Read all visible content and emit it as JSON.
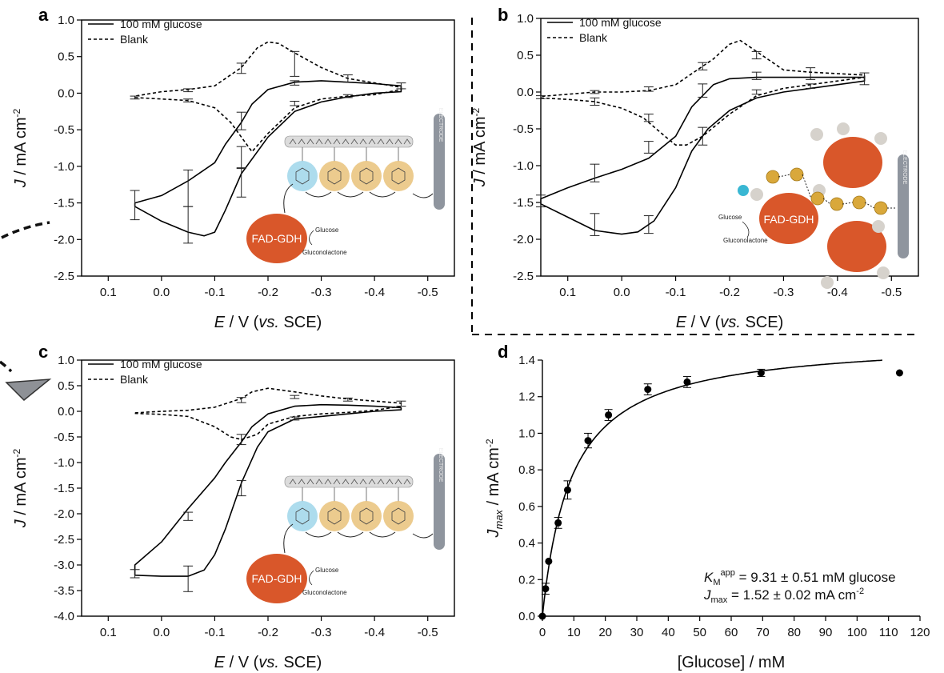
{
  "figure": {
    "panel_letters": [
      "a",
      "b",
      "c",
      "d"
    ]
  },
  "chart_data": [
    {
      "panel": "a",
      "type": "line",
      "xlabel_italic": "E",
      "xlabel_rest": " / V (",
      "xlabel_vs": "vs.",
      "xlabel_end": " SCE)",
      "ylabel_italic": "J",
      "ylabel_rest": " / mA cm",
      "ylabel_sup": "-2",
      "xlim": [
        0.15,
        -0.55
      ],
      "ylim": [
        -2.5,
        1.0
      ],
      "xticks": [
        0.1,
        0.0,
        -0.1,
        -0.2,
        -0.3,
        -0.4,
        -0.5
      ],
      "xtick_labels": [
        "0.1",
        "0.0",
        "-0.1",
        "-0.2",
        "-0.3",
        "-0.4",
        "-0.5"
      ],
      "yticks": [
        1.0,
        0.5,
        0.0,
        -0.5,
        -1.0,
        -1.5,
        -2.0,
        -2.5
      ],
      "ytick_labels": [
        "1.0",
        "0.5",
        "0.0",
        "-0.5",
        "-1.0",
        "-1.5",
        "-2.0",
        "-2.5"
      ],
      "series": [
        {
          "name": "100 mM glucose",
          "style": "solid",
          "x": [
            0.05,
            0.0,
            -0.05,
            -0.08,
            -0.1,
            -0.12,
            -0.15,
            -0.2,
            -0.25,
            -0.3,
            -0.35,
            -0.4,
            -0.45,
            -0.45,
            -0.4,
            -0.35,
            -0.3,
            -0.25,
            -0.2,
            -0.17,
            -0.15,
            -0.12,
            -0.1,
            -0.05,
            0.0,
            0.05
          ],
          "y": [
            -1.55,
            -1.75,
            -1.9,
            -1.95,
            -1.9,
            -1.6,
            -1.1,
            -0.6,
            -0.25,
            -0.12,
            -0.05,
            0.0,
            0.02,
            0.1,
            0.13,
            0.15,
            0.17,
            0.15,
            0.05,
            -0.15,
            -0.4,
            -0.7,
            -0.95,
            -1.2,
            -1.4,
            -1.5
          ]
        },
        {
          "name": "Blank",
          "style": "dashed",
          "x": [
            0.05,
            0.0,
            -0.05,
            -0.1,
            -0.13,
            -0.15,
            -0.17,
            -0.2,
            -0.25,
            -0.3,
            -0.35,
            -0.4,
            -0.45,
            -0.45,
            -0.4,
            -0.35,
            -0.3,
            -0.25,
            -0.22,
            -0.2,
            -0.18,
            -0.15,
            -0.1,
            -0.05,
            0.0,
            0.05
          ],
          "y": [
            -0.06,
            -0.08,
            -0.1,
            -0.2,
            -0.4,
            -0.6,
            -0.8,
            -0.55,
            -0.2,
            -0.08,
            -0.04,
            -0.02,
            0.05,
            0.08,
            0.14,
            0.2,
            0.35,
            0.55,
            0.68,
            0.7,
            0.62,
            0.35,
            0.1,
            0.05,
            0.02,
            -0.04
          ]
        }
      ],
      "error_bars": [
        {
          "x": 0.05,
          "y": -1.53,
          "e": 0.2
        },
        {
          "x": -0.05,
          "y": -1.3,
          "e": 0.25
        },
        {
          "x": -0.05,
          "y": -1.8,
          "e": 0.25
        },
        {
          "x": -0.05,
          "y": 0.04,
          "e": 0.02
        },
        {
          "x": -0.05,
          "y": -0.1,
          "e": 0.02
        },
        {
          "x": 0.05,
          "y": -0.06,
          "e": 0.02
        },
        {
          "x": -0.15,
          "y": 0.34,
          "e": 0.07
        },
        {
          "x": -0.15,
          "y": -0.38,
          "e": 0.12
        },
        {
          "x": -0.15,
          "y": -0.88,
          "e": 0.15
        },
        {
          "x": -0.15,
          "y": -1.22,
          "e": 0.2
        },
        {
          "x": -0.25,
          "y": 0.4,
          "e": 0.17
        },
        {
          "x": -0.25,
          "y": 0.14,
          "e": 0.03
        },
        {
          "x": -0.25,
          "y": -0.14,
          "e": 0.03
        },
        {
          "x": -0.35,
          "y": 0.2,
          "e": 0.05
        },
        {
          "x": -0.35,
          "y": -0.04,
          "e": 0.02
        },
        {
          "x": -0.45,
          "y": 0.1,
          "e": 0.04
        }
      ],
      "legend_position": "top-left",
      "inset": {
        "enzyme_label": "FAD-GDH",
        "substrate_label": "Glucose",
        "product_label": "Gluconolactone",
        "electrode_label": "ELECTRODE"
      }
    },
    {
      "panel": "b",
      "type": "line",
      "xlabel_italic": "E",
      "xlabel_rest": " / V (",
      "xlabel_vs": "vs.",
      "xlabel_end": " SCE)",
      "ylabel_italic": "J",
      "ylabel_rest": " / mA cm",
      "ylabel_sup": "-2",
      "xlim": [
        0.15,
        -0.55
      ],
      "ylim": [
        -2.5,
        1.0
      ],
      "xticks": [
        0.1,
        0.0,
        -0.1,
        -0.2,
        -0.3,
        -0.4,
        -0.5
      ],
      "xtick_labels": [
        "0.1",
        "0.0",
        "-0.1",
        "-0.2",
        "-0.3",
        "-0.4",
        "-0.5"
      ],
      "yticks": [
        1.0,
        0.5,
        0.0,
        -0.5,
        -1.0,
        -1.5,
        -2.0,
        -2.5
      ],
      "ytick_labels": [
        "1.0",
        "0.5",
        "0.0",
        "-0.5",
        "-1.0",
        "-1.5",
        "-2.0",
        "-2.5"
      ],
      "series": [
        {
          "name": "100 mM glucose",
          "style": "solid",
          "x": [
            0.15,
            0.1,
            0.05,
            0.0,
            -0.03,
            -0.06,
            -0.1,
            -0.13,
            -0.16,
            -0.2,
            -0.25,
            -0.3,
            -0.35,
            -0.4,
            -0.45,
            -0.45,
            -0.4,
            -0.35,
            -0.3,
            -0.25,
            -0.2,
            -0.17,
            -0.13,
            -0.1,
            -0.05,
            0.0,
            0.05,
            0.1,
            0.15
          ],
          "y": [
            -1.52,
            -1.7,
            -1.88,
            -1.93,
            -1.9,
            -1.75,
            -1.3,
            -0.8,
            -0.5,
            -0.25,
            -0.08,
            0.0,
            0.05,
            0.1,
            0.15,
            0.2,
            0.2,
            0.2,
            0.2,
            0.2,
            0.18,
            0.1,
            -0.2,
            -0.6,
            -0.9,
            -1.05,
            -1.17,
            -1.3,
            -1.45
          ]
        },
        {
          "name": "Blank",
          "style": "dashed",
          "x": [
            0.15,
            0.1,
            0.05,
            0.0,
            -0.04,
            -0.08,
            -0.1,
            -0.12,
            -0.15,
            -0.2,
            -0.25,
            -0.3,
            -0.35,
            -0.4,
            -0.45,
            -0.45,
            -0.4,
            -0.35,
            -0.3,
            -0.26,
            -0.22,
            -0.2,
            -0.17,
            -0.15,
            -0.1,
            -0.05,
            0.0,
            0.05,
            0.1,
            0.15
          ],
          "y": [
            -0.08,
            -0.1,
            -0.13,
            -0.22,
            -0.35,
            -0.6,
            -0.72,
            -0.72,
            -0.6,
            -0.3,
            -0.05,
            0.05,
            0.1,
            0.15,
            0.2,
            0.23,
            0.25,
            0.27,
            0.3,
            0.5,
            0.7,
            0.65,
            0.45,
            0.35,
            0.1,
            0.02,
            0.0,
            0.0,
            -0.03,
            -0.06
          ]
        }
      ],
      "error_bars": [
        {
          "x": 0.15,
          "y": -1.48,
          "e": 0.08
        },
        {
          "x": 0.15,
          "y": -0.07,
          "e": 0.02
        },
        {
          "x": 0.05,
          "y": -1.8,
          "e": 0.15
        },
        {
          "x": 0.05,
          "y": -0.13,
          "e": 0.05
        },
        {
          "x": 0.05,
          "y": 0.0,
          "e": 0.02
        },
        {
          "x": 0.05,
          "y": -1.1,
          "e": 0.12
        },
        {
          "x": -0.05,
          "y": -1.8,
          "e": 0.12
        },
        {
          "x": -0.05,
          "y": -0.35,
          "e": 0.05
        },
        {
          "x": -0.05,
          "y": 0.04,
          "e": 0.03
        },
        {
          "x": -0.05,
          "y": -0.75,
          "e": 0.08
        },
        {
          "x": -0.15,
          "y": -0.6,
          "e": 0.12
        },
        {
          "x": -0.15,
          "y": 0.35,
          "e": 0.05
        },
        {
          "x": -0.15,
          "y": 0.02,
          "e": 0.09
        },
        {
          "x": -0.25,
          "y": 0.5,
          "e": 0.05
        },
        {
          "x": -0.25,
          "y": 0.22,
          "e": 0.05
        },
        {
          "x": -0.25,
          "y": 0.0,
          "e": 0.03
        },
        {
          "x": -0.35,
          "y": 0.25,
          "e": 0.08
        },
        {
          "x": -0.35,
          "y": 0.08,
          "e": 0.03
        },
        {
          "x": -0.45,
          "y": 0.18,
          "e": 0.08
        }
      ],
      "legend_position": "top-left",
      "inset": {
        "enzyme_label": "FAD-GDH",
        "substrate_label": "Glucose",
        "product_label": "Gluconolactone",
        "electrode_label": "ELECTRODE"
      }
    },
    {
      "panel": "c",
      "type": "line",
      "xlabel_italic": "E",
      "xlabel_rest": " / V (",
      "xlabel_vs": "vs.",
      "xlabel_end": " SCE)",
      "ylabel_italic": "J",
      "ylabel_rest": " / mA cm",
      "ylabel_sup": "-2",
      "xlim": [
        0.15,
        -0.55
      ],
      "ylim": [
        -4.0,
        1.0
      ],
      "xticks": [
        0.1,
        0.0,
        -0.1,
        -0.2,
        -0.3,
        -0.4,
        -0.5
      ],
      "xtick_labels": [
        "0.1",
        "0.0",
        "-0.1",
        "-0.2",
        "-0.3",
        "-0.4",
        "-0.5"
      ],
      "yticks": [
        1.0,
        0.5,
        0.0,
        -0.5,
        -1.0,
        -1.5,
        -2.0,
        -2.5,
        -3.0,
        -3.5,
        -4.0
      ],
      "ytick_labels": [
        "1.0",
        "0.5",
        "0.0",
        "-0.5",
        "-1.0",
        "-1.5",
        "-2.0",
        "-2.5",
        "-3.0",
        "-3.5",
        "-4.0"
      ],
      "series": [
        {
          "name": "100 mM glucose",
          "style": "solid",
          "x": [
            0.05,
            0.0,
            -0.05,
            -0.08,
            -0.1,
            -0.12,
            -0.15,
            -0.18,
            -0.2,
            -0.25,
            -0.3,
            -0.35,
            -0.4,
            -0.45,
            -0.45,
            -0.4,
            -0.35,
            -0.3,
            -0.25,
            -0.2,
            -0.17,
            -0.15,
            -0.12,
            -0.1,
            -0.05,
            0.0,
            0.05
          ],
          "y": [
            -3.2,
            -3.22,
            -3.22,
            -3.1,
            -2.8,
            -2.3,
            -1.4,
            -0.7,
            -0.4,
            -0.15,
            -0.1,
            -0.05,
            0.0,
            0.03,
            0.07,
            0.1,
            0.12,
            0.13,
            0.1,
            -0.05,
            -0.3,
            -0.6,
            -1.0,
            -1.3,
            -1.9,
            -2.55,
            -3.0
          ]
        },
        {
          "name": "Blank",
          "style": "dashed",
          "x": [
            0.05,
            0.0,
            -0.05,
            -0.1,
            -0.13,
            -0.15,
            -0.18,
            -0.2,
            -0.25,
            -0.3,
            -0.35,
            -0.4,
            -0.45,
            -0.45,
            -0.4,
            -0.35,
            -0.3,
            -0.25,
            -0.2,
            -0.17,
            -0.15,
            -0.1,
            -0.05,
            0.0,
            0.05
          ],
          "y": [
            -0.04,
            -0.06,
            -0.1,
            -0.3,
            -0.5,
            -0.55,
            -0.45,
            -0.25,
            -0.1,
            -0.05,
            -0.02,
            0.02,
            0.1,
            0.16,
            0.2,
            0.24,
            0.3,
            0.38,
            0.45,
            0.38,
            0.25,
            0.08,
            0.02,
            0.0,
            -0.03
          ]
        }
      ],
      "error_bars": [
        {
          "x": 0.05,
          "y": -3.17,
          "e": 0.08
        },
        {
          "x": -0.05,
          "y": -3.27,
          "e": 0.25
        },
        {
          "x": -0.05,
          "y": -2.05,
          "e": 0.08
        },
        {
          "x": -0.15,
          "y": 0.22,
          "e": 0.05
        },
        {
          "x": -0.15,
          "y": -0.55,
          "e": 0.1
        },
        {
          "x": -0.15,
          "y": -1.5,
          "e": 0.15
        },
        {
          "x": -0.25,
          "y": 0.28,
          "e": 0.03
        },
        {
          "x": -0.25,
          "y": -0.14,
          "e": 0.03
        },
        {
          "x": -0.35,
          "y": 0.23,
          "e": 0.03
        },
        {
          "x": -0.45,
          "y": 0.15,
          "e": 0.05
        }
      ],
      "legend_position": "top-left",
      "inset": {
        "enzyme_label": "FAD-GDH",
        "substrate_label": "Glucose",
        "product_label": "Gluconolactone",
        "electrode_label": "ELECTRODE"
      }
    },
    {
      "panel": "d",
      "type": "scatter",
      "xlabel": "[Glucose] / mM",
      "ylabel_italic": "J",
      "ylabel_sub": "max",
      "ylabel_rest": " / mA cm",
      "ylabel_sup": "-2",
      "xlim": [
        0,
        120
      ],
      "ylim": [
        0.0,
        1.4
      ],
      "xticks": [
        0,
        10,
        20,
        30,
        40,
        50,
        60,
        70,
        80,
        90,
        100,
        110,
        120
      ],
      "xtick_labels": [
        "0",
        "10",
        "20",
        "30",
        "40",
        "50",
        "60",
        "70",
        "80",
        "90",
        "100",
        "110",
        "120"
      ],
      "yticks": [
        0.0,
        0.2,
        0.4,
        0.6,
        0.8,
        1.0,
        1.2,
        1.4
      ],
      "ytick_labels": [
        "0.0",
        "0.2",
        "0.4",
        "0.6",
        "0.8",
        "1.0",
        "1.2",
        "1.4"
      ],
      "points": {
        "x": [
          0,
          1,
          2,
          5,
          8,
          14.5,
          21,
          33.5,
          46,
          69.5,
          113.5
        ],
        "y": [
          0.0,
          0.15,
          0.3,
          0.51,
          0.69,
          0.96,
          1.1,
          1.24,
          1.28,
          1.33,
          1.33
        ],
        "err": [
          0.0,
          0.03,
          0.0,
          0.03,
          0.05,
          0.04,
          0.03,
          0.03,
          0.03,
          0.02,
          0.0
        ]
      },
      "fit": {
        "model": "Michaelis-Menten",
        "Km": 9.31,
        "Jmax": 1.52,
        "x_end": 108
      },
      "annotation": {
        "km_symbol": "K",
        "km_sub": "M",
        "km_sup": "app",
        "km_text": " = 9.31 ± 0.51 mM glucose",
        "jmax_symbol": "J",
        "jmax_sub": "max",
        "jmax_text": " = 1.52 ± 0.02 mA cm",
        "jmax_sup": "-2"
      }
    }
  ]
}
